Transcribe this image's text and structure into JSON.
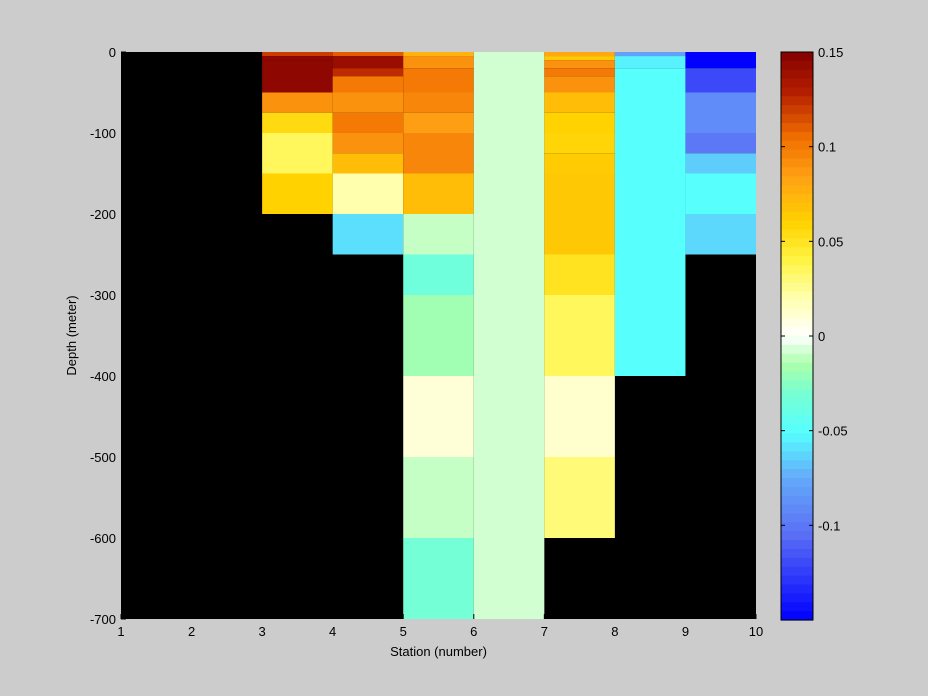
{
  "chart_data": {
    "type": "heatmap",
    "title": "",
    "xlabel": "Station (number)",
    "ylabel": "Depth (meter)",
    "xlim": [
      1,
      10
    ],
    "ylim": [
      -700,
      0
    ],
    "x_ticks": [
      1,
      2,
      3,
      4,
      5,
      6,
      7,
      8,
      9,
      10
    ],
    "y_ticks": [
      0,
      -100,
      -200,
      -300,
      -400,
      -500,
      -600,
      -700
    ],
    "colorbar": {
      "range": [
        -0.15,
        0.15
      ],
      "ticks": [
        0.15,
        0.1,
        0.05,
        0,
        -0.05,
        -0.1
      ],
      "colormap": "jet-white-center"
    },
    "nodata_color": "#000000",
    "columns": [
      {
        "station_start": 1,
        "station_end": 3,
        "cells": []
      },
      {
        "station_start": 3,
        "station_end": 4,
        "cells": [
          {
            "top": 0,
            "bottom": -5,
            "value": 0.12
          },
          {
            "top": -5,
            "bottom": -10,
            "value": 0.145
          },
          {
            "top": -10,
            "bottom": -50,
            "value": 0.145
          },
          {
            "top": -50,
            "bottom": -75,
            "value": 0.09
          },
          {
            "top": -75,
            "bottom": -100,
            "value": 0.055
          },
          {
            "top": -100,
            "bottom": -150,
            "value": 0.035
          },
          {
            "top": -150,
            "bottom": -200,
            "value": 0.06
          }
        ]
      },
      {
        "station_start": 4,
        "station_end": 5,
        "cells": [
          {
            "top": 0,
            "bottom": -5,
            "value": 0.11
          },
          {
            "top": -5,
            "bottom": -20,
            "value": 0.14
          },
          {
            "top": -20,
            "bottom": -30,
            "value": 0.125
          },
          {
            "top": -30,
            "bottom": -50,
            "value": 0.1
          },
          {
            "top": -50,
            "bottom": -75,
            "value": 0.09
          },
          {
            "top": -75,
            "bottom": -100,
            "value": 0.1
          },
          {
            "top": -100,
            "bottom": -125,
            "value": 0.09
          },
          {
            "top": -125,
            "bottom": -150,
            "value": 0.07
          },
          {
            "top": -150,
            "bottom": -200,
            "value": 0.02
          },
          {
            "top": -200,
            "bottom": -250,
            "value": -0.06
          }
        ]
      },
      {
        "station_start": 5,
        "station_end": 6,
        "cells": [
          {
            "top": 0,
            "bottom": -5,
            "value": 0.075
          },
          {
            "top": -5,
            "bottom": -20,
            "value": 0.09
          },
          {
            "top": -20,
            "bottom": -50,
            "value": 0.1
          },
          {
            "top": -50,
            "bottom": -75,
            "value": 0.095
          },
          {
            "top": -75,
            "bottom": -100,
            "value": 0.085
          },
          {
            "top": -100,
            "bottom": -150,
            "value": 0.095
          },
          {
            "top": -150,
            "bottom": -200,
            "value": 0.07
          },
          {
            "top": -200,
            "bottom": -250,
            "value": -0.01
          },
          {
            "top": -250,
            "bottom": -300,
            "value": -0.035
          },
          {
            "top": -300,
            "bottom": -400,
            "value": -0.018
          },
          {
            "top": -400,
            "bottom": -500,
            "value": 0.01
          },
          {
            "top": -500,
            "bottom": -600,
            "value": -0.01
          },
          {
            "top": -600,
            "bottom": -700,
            "value": -0.032
          }
        ]
      },
      {
        "station_start": 6,
        "station_end": 7,
        "cells": [
          {
            "top": 0,
            "bottom": -700,
            "value": -0.008
          }
        ]
      },
      {
        "station_start": 7,
        "station_end": 8,
        "cells": [
          {
            "top": 0,
            "bottom": -5,
            "value": 0.08
          },
          {
            "top": -5,
            "bottom": -10,
            "value": 0.065
          },
          {
            "top": -10,
            "bottom": -20,
            "value": 0.09
          },
          {
            "top": -20,
            "bottom": -30,
            "value": 0.1
          },
          {
            "top": -30,
            "bottom": -50,
            "value": 0.09
          },
          {
            "top": -50,
            "bottom": -75,
            "value": 0.07
          },
          {
            "top": -75,
            "bottom": -100,
            "value": 0.06
          },
          {
            "top": -100,
            "bottom": -125,
            "value": 0.058
          },
          {
            "top": -125,
            "bottom": -150,
            "value": 0.063
          },
          {
            "top": -150,
            "bottom": -200,
            "value": 0.065
          },
          {
            "top": -200,
            "bottom": -250,
            "value": 0.065
          },
          {
            "top": -250,
            "bottom": -300,
            "value": 0.05
          },
          {
            "top": -300,
            "bottom": -400,
            "value": 0.035
          },
          {
            "top": -400,
            "bottom": -500,
            "value": 0.012
          },
          {
            "top": -500,
            "bottom": -600,
            "value": 0.03
          }
        ]
      },
      {
        "station_start": 8,
        "station_end": 9,
        "cells": [
          {
            "top": 0,
            "bottom": -5,
            "value": -0.08
          },
          {
            "top": -5,
            "bottom": -20,
            "value": -0.055
          },
          {
            "top": -20,
            "bottom": -400,
            "value": -0.05
          }
        ]
      },
      {
        "station_start": 9,
        "station_end": 10,
        "cells": [
          {
            "top": 0,
            "bottom": -20,
            "value": -0.15
          },
          {
            "top": -20,
            "bottom": -50,
            "value": -0.12
          },
          {
            "top": -50,
            "bottom": -100,
            "value": -0.09
          },
          {
            "top": -100,
            "bottom": -125,
            "value": -0.1
          },
          {
            "top": -125,
            "bottom": -150,
            "value": -0.065
          },
          {
            "top": -150,
            "bottom": -200,
            "value": -0.05
          },
          {
            "top": -200,
            "bottom": -250,
            "value": -0.062
          }
        ]
      }
    ]
  }
}
